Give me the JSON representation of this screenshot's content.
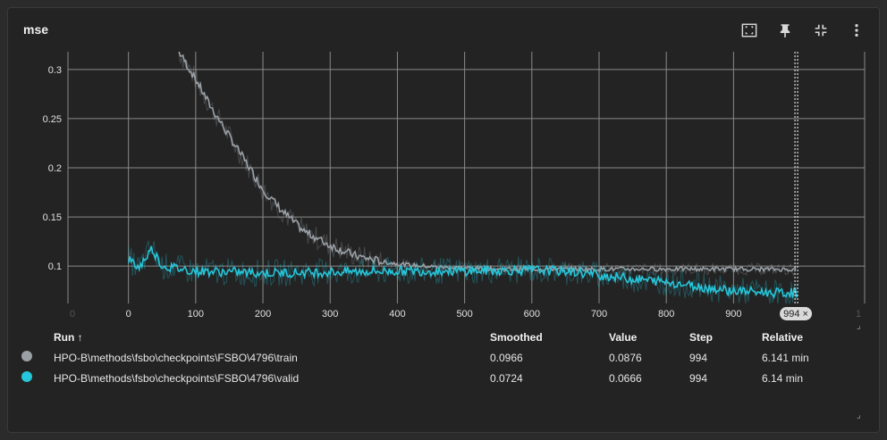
{
  "card": {
    "title": "mse"
  },
  "toolbar": {
    "buttons": [
      {
        "name": "fit-domain-button",
        "icon": "fit-to-data-icon"
      },
      {
        "name": "pin-button",
        "icon": "pin-icon"
      },
      {
        "name": "collapse-button",
        "icon": "collapse-icon"
      },
      {
        "name": "more-button",
        "icon": "more-vertical-icon"
      }
    ]
  },
  "chart_data": {
    "type": "line",
    "title": "mse",
    "xlim": [
      -90,
      1095
    ],
    "ylim": [
      0.062,
      0.318
    ],
    "x_ticks": [
      0,
      100,
      200,
      300,
      400,
      500,
      600,
      700,
      800,
      900
    ],
    "x_tick_labels": [
      "0",
      "100",
      "200",
      "300",
      "400",
      "500",
      "600",
      "700",
      "800",
      "900"
    ],
    "x_edge_labels": [
      "0",
      "1"
    ],
    "y_ticks": [
      0.1,
      0.15,
      0.2,
      0.25,
      0.3
    ],
    "y_tick_labels": [
      "0.1",
      "0.15",
      "0.2",
      "0.25",
      "0.3"
    ],
    "grid": true,
    "cursor_step": 994,
    "cursor_label": "994 ×",
    "series": [
      {
        "name": "HPO-B\\methods\\fsbo\\checkpoints\\FSBO\\4796\\train",
        "color": "#9aa0a6",
        "x": [
          75,
          100,
          120,
          150,
          180,
          200,
          230,
          260,
          300,
          340,
          380,
          420,
          460,
          500,
          550,
          600,
          650,
          700,
          750,
          800,
          850,
          900,
          994
        ],
        "y": [
          0.318,
          0.29,
          0.265,
          0.232,
          0.2,
          0.178,
          0.155,
          0.136,
          0.121,
          0.11,
          0.104,
          0.101,
          0.099,
          0.098,
          0.097,
          0.097,
          0.097,
          0.097,
          0.097,
          0.097,
          0.097,
          0.097,
          0.0966
        ]
      },
      {
        "name": "HPO-B\\methods\\fsbo\\checkpoints\\FSBO\\4796\\valid",
        "color": "#26c6da",
        "x": [
          0,
          15,
          35,
          50,
          100,
          150,
          200,
          300,
          400,
          500,
          600,
          650,
          700,
          750,
          800,
          850,
          900,
          950,
          994
        ],
        "y": [
          0.107,
          0.098,
          0.118,
          0.1,
          0.095,
          0.094,
          0.093,
          0.094,
          0.095,
          0.095,
          0.096,
          0.095,
          0.091,
          0.087,
          0.084,
          0.079,
          0.075,
          0.073,
          0.0724
        ]
      }
    ]
  },
  "table": {
    "headers": {
      "run": "Run ↑",
      "smoothed": "Smoothed",
      "value": "Value",
      "step": "Step",
      "relative": "Relative"
    },
    "rows": [
      {
        "color": "#9aa0a6",
        "run": "HPO-B\\methods\\fsbo\\checkpoints\\FSBO\\4796\\train",
        "smoothed": "0.0966",
        "value": "0.0876",
        "step": "994",
        "relative": "6.141 min"
      },
      {
        "color": "#26c6da",
        "run": "HPO-B\\methods\\fsbo\\checkpoints\\FSBO\\4796\\valid",
        "smoothed": "0.0724",
        "value": "0.0666",
        "step": "994",
        "relative": "6.14 min"
      }
    ]
  }
}
